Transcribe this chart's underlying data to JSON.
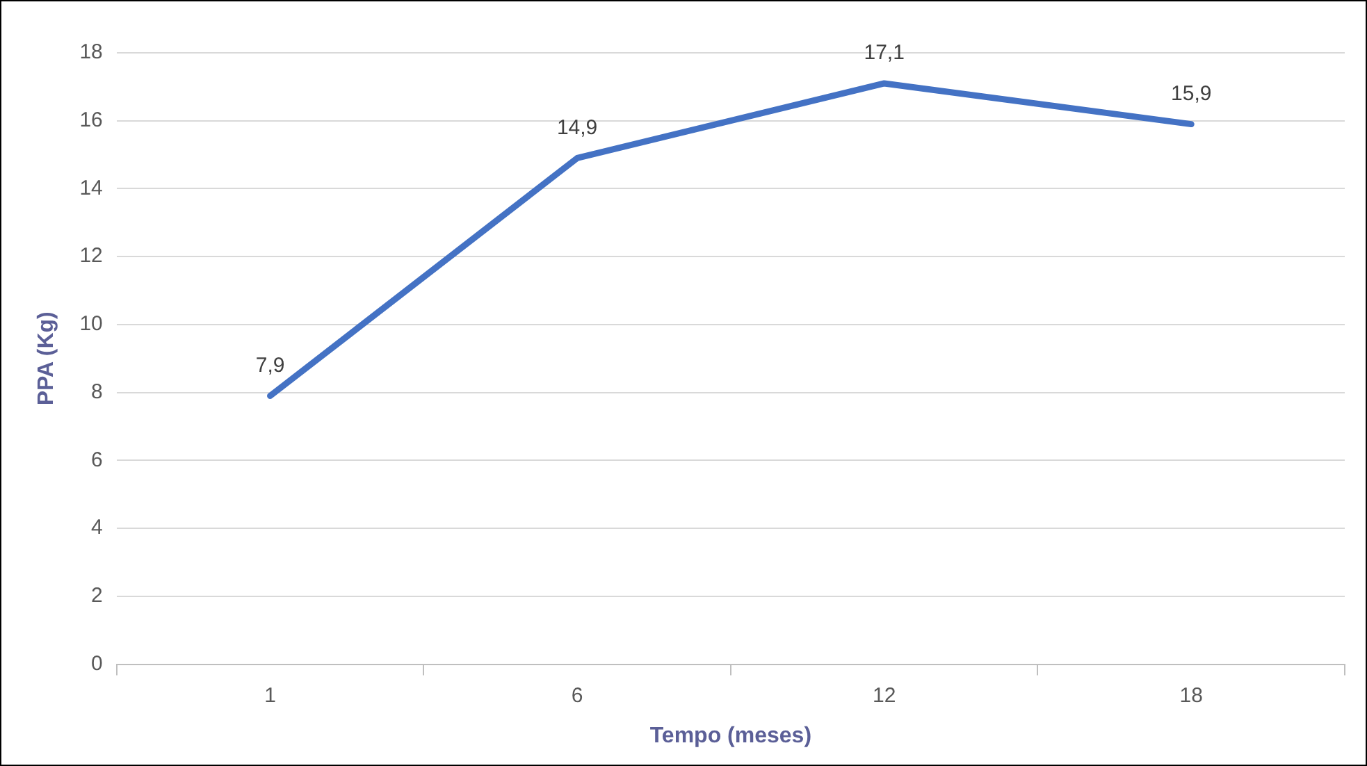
{
  "chart_data": {
    "type": "line",
    "xlabel": "Tempo (meses)",
    "ylabel": "PPA (Kg)",
    "categories": [
      "1",
      "6",
      "12",
      "18"
    ],
    "series": [
      {
        "color": "#4472c4",
        "values": [
          7.9,
          14.9,
          17.1,
          15.9
        ],
        "value_labels": [
          "7,9",
          "14,9",
          "17,1",
          "15,9"
        ]
      }
    ],
    "ylim": [
      0,
      18
    ],
    "yticks": [
      0,
      2,
      4,
      6,
      8,
      10,
      12,
      14,
      16,
      18
    ],
    "grid": "y",
    "legend": false,
    "marker": "none",
    "line_style": "solid"
  }
}
